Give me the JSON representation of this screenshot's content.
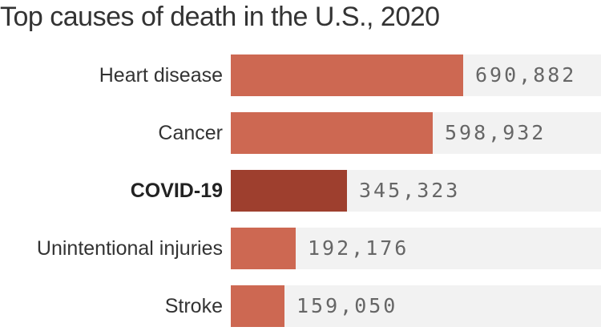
{
  "chart_data": {
    "type": "bar",
    "orientation": "horizontal",
    "title": "Top causes of death in the U.S., 2020",
    "categories": [
      "Heart disease",
      "Cancer",
      "COVID-19",
      "Unintentional injuries",
      "Stroke"
    ],
    "values": [
      690882,
      598932,
      345323,
      192176,
      159050
    ],
    "value_labels": [
      "690,882",
      "598,932",
      "345,323",
      "192,176",
      "159,050"
    ],
    "highlight": "COVID-19",
    "xlim": [
      0,
      1100000
    ],
    "grid": false,
    "legend": "none"
  },
  "colors": {
    "bar": "#cd6852",
    "highlight": "#9e3f2e",
    "track": "#f2f2f2"
  }
}
